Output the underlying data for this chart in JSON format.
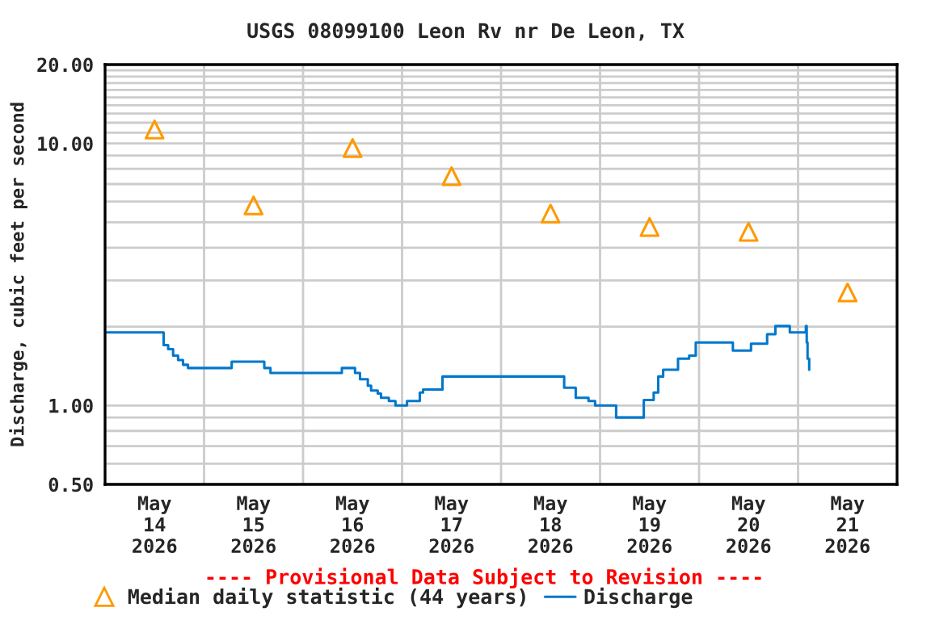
{
  "chart_data": {
    "type": "scatter",
    "title": "USGS 08099100 Leon Rv nr De Leon, TX",
    "ylabel": "Discharge, cubic feet per second",
    "annotations": [
      "---- Provisional Data Subject to Revision ----"
    ],
    "log": "y",
    "grid": true,
    "legend": "bottom",
    "xlim": [
      "2026-05-14T00:00",
      "2026-05-22T00:00"
    ],
    "xticks": [
      {
        "value": "2026-05-14T12:00",
        "label": "May\n14\n2026"
      },
      {
        "value": "2026-05-15T12:00",
        "label": "May\n15\n2026"
      },
      {
        "value": "2026-05-16T12:00",
        "label": "May\n16\n2026"
      },
      {
        "value": "2026-05-17T12:00",
        "label": "May\n17\n2026"
      },
      {
        "value": "2026-05-18T12:00",
        "label": "May\n18\n2026"
      },
      {
        "value": "2026-05-19T12:00",
        "label": "May\n19\n2026"
      },
      {
        "value": "2026-05-20T12:00",
        "label": "May\n20\n2026"
      },
      {
        "value": "2026-05-21T12:00",
        "label": "May\n21\n2026"
      },
      {
        "value": "2026-05-15T00:00",
        "label": null
      },
      {
        "value": "2026-05-16T00:00",
        "label": null
      },
      {
        "value": "2026-05-17T00:00",
        "label": null
      },
      {
        "value": "2026-05-18T00:00",
        "label": null
      },
      {
        "value": "2026-05-19T00:00",
        "label": null
      },
      {
        "value": "2026-05-20T00:00",
        "label": null
      },
      {
        "value": "2026-05-21T00:00",
        "label": null
      }
    ],
    "ylim": [
      0.5,
      20
    ],
    "yticks": [
      {
        "value": 0.5,
        "label": "0.50"
      },
      {
        "value": 0.6,
        "label": null
      },
      {
        "value": 0.7,
        "label": null
      },
      {
        "value": 0.8,
        "label": null
      },
      {
        "value": 0.9,
        "label": null
      },
      {
        "value": 1,
        "label": "1.00"
      },
      {
        "value": 2,
        "label": null
      },
      {
        "value": 3,
        "label": null
      },
      {
        "value": 4,
        "label": null
      },
      {
        "value": 5,
        "label": null
      },
      {
        "value": 6,
        "label": null
      },
      {
        "value": 7,
        "label": null
      },
      {
        "value": 8,
        "label": null
      },
      {
        "value": 9,
        "label": null
      },
      {
        "value": 10,
        "label": "10.00"
      },
      {
        "value": 11,
        "label": null
      },
      {
        "value": 12,
        "label": null
      },
      {
        "value": 13,
        "label": null
      },
      {
        "value": 14,
        "label": null
      },
      {
        "value": 15,
        "label": null
      },
      {
        "value": 16,
        "label": null
      },
      {
        "value": 17,
        "label": null
      },
      {
        "value": 18,
        "label": null
      },
      {
        "value": 19,
        "label": null
      },
      {
        "value": 20,
        "label": "20.00"
      }
    ],
    "series": [
      {
        "name": "Median daily statistic (44 years)",
        "marker": "triangle",
        "color": "#ff9900",
        "x": [
          "2026-05-14T12:00",
          "2026-05-15T12:00",
          "2026-05-16T12:00",
          "2026-05-17T12:00",
          "2026-05-18T12:00",
          "2026-05-19T12:00",
          "2026-05-20T12:00",
          "2026-05-21T12:00"
        ],
        "values": [
          11.3,
          5.8,
          9.6,
          7.5,
          5.4,
          4.8,
          4.6,
          2.7
        ]
      },
      {
        "name": "Discharge",
        "type": "step",
        "color": "#0077cc",
        "x": [
          "2026-05-14T00:00",
          "2026-05-14T14:12",
          "2026-05-14T15:18",
          "2026-05-14T16:30",
          "2026-05-14T17:42",
          "2026-05-14T18:54",
          "2026-05-14T20:06",
          "2026-05-15T06:42",
          "2026-05-15T14:36",
          "2026-05-15T16:06",
          "2026-05-16T09:24",
          "2026-05-16T12:36",
          "2026-05-16T13:48",
          "2026-05-16T15:42",
          "2026-05-16T16:30",
          "2026-05-16T18:06",
          "2026-05-16T18:54",
          "2026-05-16T20:48",
          "2026-05-16T22:24",
          "2026-05-17T01:12",
          "2026-05-17T04:18",
          "2026-05-17T05:06",
          "2026-05-17T09:48",
          "2026-05-18T15:18",
          "2026-05-18T18:06",
          "2026-05-18T21:12",
          "2026-05-18T22:48",
          "2026-05-19T03:54",
          "2026-05-19T10:36",
          "2026-05-19T13:00",
          "2026-05-19T14:06",
          "2026-05-19T15:18",
          "2026-05-19T18:54",
          "2026-05-19T21:36",
          "2026-05-19T23:12",
          "2026-05-20T08:12",
          "2026-05-20T12:36",
          "2026-05-20T16:30",
          "2026-05-20T18:30",
          "2026-05-20T22:00",
          "2026-05-21T01:54",
          "2026-05-21T02:06",
          "2026-05-21T02:18",
          "2026-05-21T02:42"
        ],
        "values": [
          1.9,
          1.7,
          1.64,
          1.55,
          1.49,
          1.43,
          1.39,
          1.47,
          1.39,
          1.33,
          1.39,
          1.33,
          1.26,
          1.19,
          1.14,
          1.11,
          1.07,
          1.04,
          1.0,
          1.04,
          1.12,
          1.15,
          1.29,
          1.17,
          1.07,
          1.04,
          1.0,
          0.9,
          1.05,
          1.12,
          1.29,
          1.37,
          1.51,
          1.55,
          1.74,
          1.62,
          1.72,
          1.87,
          2.01,
          1.9,
          2.01,
          1.74,
          1.51,
          1.37
        ]
      }
    ]
  }
}
